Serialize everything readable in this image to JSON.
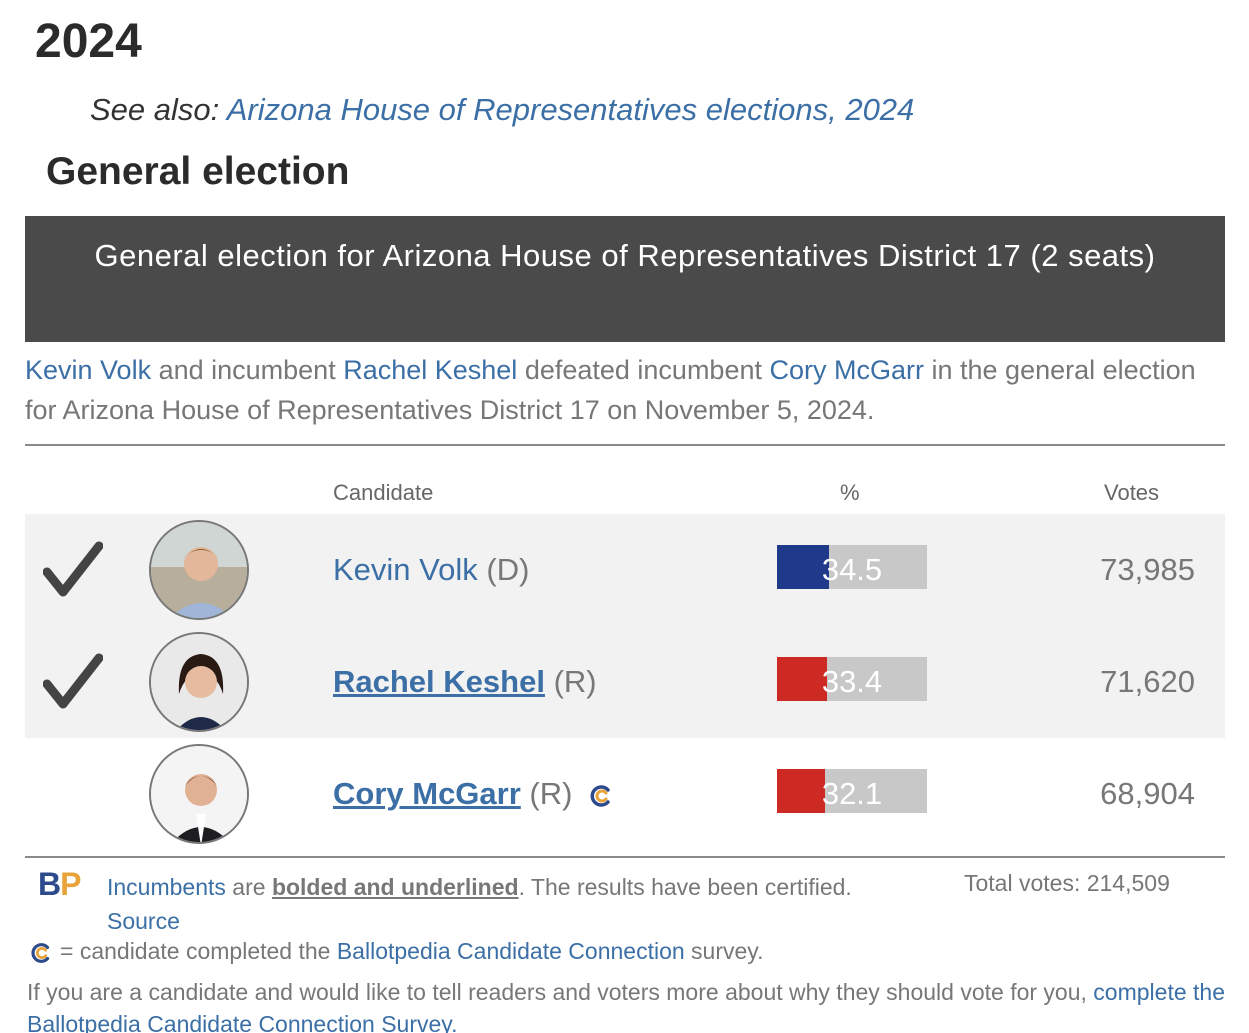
{
  "heading_year": "2024",
  "see_also": {
    "prefix": "See also: ",
    "link": "Arizona House of Representatives elections, 2024"
  },
  "section_heading": "General election",
  "banner": "General election for Arizona House of Representatives District 17 (2 seats)",
  "summary": {
    "winner1": "Kevin Volk",
    "t1": " and incumbent ",
    "winner2": "Rachel Keshel",
    "t2": " defeated incumbent ",
    "loser": "Cory McGarr",
    "t3": " in the general election for Arizona House of Representatives District 17 on November 5, 2024."
  },
  "table": {
    "headers": {
      "candidate": "Candidate",
      "percent": "%",
      "votes": "Votes"
    },
    "rows": [
      {
        "name": "Kevin Volk",
        "party": "(D)",
        "percent": "34.5",
        "pct_value": 34.5,
        "votes": "73,985",
        "winner": true,
        "incumbent": false,
        "cc": false,
        "color": "#1f3a8a"
      },
      {
        "name": "Rachel Keshel",
        "party": "(R)",
        "percent": "33.4",
        "pct_value": 33.4,
        "votes": "71,620",
        "winner": true,
        "incumbent": true,
        "cc": false,
        "color": "#cc2a22"
      },
      {
        "name": "Cory McGarr",
        "party": "(R)",
        "percent": "32.1",
        "pct_value": 32.1,
        "votes": "68,904",
        "winner": false,
        "incumbent": true,
        "cc": true,
        "color": "#cc2a22"
      }
    ]
  },
  "footer": {
    "logo_b": "B",
    "logo_p": "P",
    "incumbents_link": "Incumbents",
    "are": " are ",
    "bold_underlined": "bolded and underlined",
    "certified": ". The results have been certified. ",
    "source_link": "Source",
    "total_votes": "Total votes: 214,509",
    "cc_prefix": "= candidate completed the ",
    "cc_link": "Ballotpedia Candidate Connection",
    "cc_suffix": " survey.",
    "invite_text": "If you are a candidate and would like to tell readers and voters more about why they should vote for you, ",
    "invite_link": "complete the Ballotpedia Candidate Connection Survey."
  }
}
